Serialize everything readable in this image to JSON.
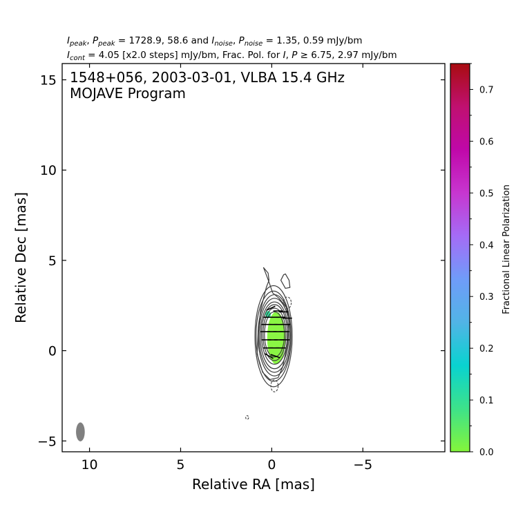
{
  "header": {
    "line1": "I_peak, P_peak = 1728.9, 58.6 and I_noise, P_noise = 1.35, 0.59 mJy/bm",
    "line2": "I_cont = 4.05 [x2.0 steps] mJy/bm, Frac. Pol. for I, P ≥ 6.75, 2.97 mJy/bm"
  },
  "chart_data": {
    "type": "contour",
    "annotation": [
      "1548+056, 2003-03-01, VLBA 15.4 GHz",
      "MOJAVE Program"
    ],
    "xlabel": "Relative RA [mas]",
    "ylabel": "Relative Dec [mas]",
    "xlim": [
      11.5,
      -9.5
    ],
    "ylim": [
      -5.6,
      15.9
    ],
    "x_ticks": [
      10,
      5,
      0,
      -5
    ],
    "x_tick_labels": [
      "10",
      "5",
      "0",
      "−5"
    ],
    "y_ticks": [
      -5,
      0,
      5,
      10,
      15
    ],
    "y_tick_labels": [
      "−5",
      "0",
      "5",
      "10",
      "15"
    ],
    "colorbar": {
      "label": "Fractional Linear Polarization",
      "range": [
        0.0,
        0.75
      ],
      "ticks": [
        0.0,
        0.1,
        0.2,
        0.3,
        0.4,
        0.5,
        0.6,
        0.7
      ],
      "tick_labels": [
        "0.0",
        "0.1",
        "0.2",
        "0.3",
        "0.4",
        "0.5",
        "0.6",
        "0.7"
      ],
      "colors": [
        "#84f53a",
        "#3de28a",
        "#09d3d0",
        "#51b4e6",
        "#6f9cf9",
        "#a46cf6",
        "#c736d0",
        "#c008a9",
        "#c01070",
        "#a80c10"
      ]
    },
    "beam": {
      "x": 10.5,
      "y": -4.5,
      "major": 1.05,
      "minor": 0.48,
      "pa": 0
    },
    "core": {
      "x": -0.1,
      "y": 1.0
    },
    "contour_colors": {
      "positive": "#3c3c3c",
      "negative": "#3c3c3c"
    },
    "contours": [
      {
        "cx": -0.15,
        "cy": 0.9,
        "rx": 0.55,
        "ry": 1.25
      },
      {
        "cx": -0.15,
        "cy": 0.9,
        "rx": 0.63,
        "ry": 1.45
      },
      {
        "cx": -0.15,
        "cy": 0.9,
        "rx": 0.71,
        "ry": 1.65
      },
      {
        "cx": -0.15,
        "cy": 0.85,
        "rx": 0.78,
        "ry": 1.85
      },
      {
        "cx": -0.15,
        "cy": 0.85,
        "rx": 0.85,
        "ry": 2.05
      },
      {
        "cx": -0.15,
        "cy": 0.85,
        "rx": 0.9,
        "ry": 2.25
      },
      {
        "cx": -0.1,
        "cy": 0.8,
        "rx": 0.96,
        "ry": 2.5
      },
      {
        "cx": -0.1,
        "cy": 0.8,
        "rx": 1.02,
        "ry": 2.8
      }
    ],
    "outer_contour": [
      [
        0.45,
        4.6
      ],
      [
        0.2,
        4.3
      ],
      [
        0.15,
        3.9
      ],
      [
        0.3,
        3.5
      ],
      [
        0.4,
        3.1
      ],
      [
        0.6,
        2.3
      ],
      [
        0.75,
        1.0
      ],
      [
        0.8,
        -0.2
      ],
      [
        0.5,
        -1.2
      ],
      [
        0.1,
        -1.6
      ],
      [
        -0.35,
        -1.5
      ],
      [
        -0.6,
        -0.9
      ],
      [
        -0.85,
        0.3
      ],
      [
        -0.95,
        1.6
      ],
      [
        -0.8,
        2.4
      ],
      [
        -0.4,
        2.9
      ],
      [
        -0.05,
        3.2
      ],
      [
        0.15,
        3.8
      ],
      [
        0.3,
        4.2
      ]
    ],
    "side_contour": [
      [
        -0.65,
        4.2
      ],
      [
        -0.5,
        3.9
      ],
      [
        -0.75,
        3.45
      ],
      [
        -1.0,
        3.5
      ],
      [
        -0.95,
        3.9
      ],
      [
        -0.75,
        4.25
      ]
    ],
    "neg_contours": [
      {
        "cx": -0.85,
        "cy": 2.65,
        "rx": 0.22,
        "ry": 0.32
      },
      {
        "cx": -0.15,
        "cy": -1.95,
        "rx": 0.2,
        "ry": 0.33
      },
      {
        "cx": 1.35,
        "cy": -3.7,
        "rx": 0.08,
        "ry": 0.1
      }
    ],
    "polarization_region": {
      "cx": -0.25,
      "cy": 0.7,
      "rx": 0.5,
      "ry": 1.45,
      "color": "#84f53a"
    },
    "pol_spot": {
      "cx": 0.2,
      "cy": 2.0,
      "rx": 0.15,
      "ry": 0.2,
      "color": "#2fe6a0"
    },
    "evpa_ticks": [
      [
        0.05,
        2.35,
        25
      ],
      [
        -0.35,
        2.2,
        0
      ],
      [
        -0.65,
        2.15,
        0
      ],
      [
        0.2,
        1.85,
        0
      ],
      [
        -0.15,
        1.85,
        0
      ],
      [
        -0.5,
        1.85,
        0
      ],
      [
        -0.85,
        1.8,
        0
      ],
      [
        0.3,
        1.45,
        0
      ],
      [
        -0.05,
        1.45,
        0
      ],
      [
        -0.4,
        1.45,
        0
      ],
      [
        -0.75,
        1.45,
        0
      ],
      [
        0.35,
        1.05,
        0
      ],
      [
        0.0,
        1.05,
        0
      ],
      [
        -0.35,
        1.05,
        0
      ],
      [
        -0.7,
        1.05,
        0
      ],
      [
        0.3,
        0.6,
        0
      ],
      [
        -0.05,
        0.6,
        0
      ],
      [
        -0.4,
        0.6,
        0
      ],
      [
        -0.72,
        0.6,
        0
      ],
      [
        0.2,
        0.15,
        0
      ],
      [
        -0.15,
        0.15,
        0
      ],
      [
        -0.5,
        0.15,
        0
      ],
      [
        0.15,
        -0.3,
        -30
      ],
      [
        -0.2,
        -0.3,
        -20
      ]
    ]
  }
}
